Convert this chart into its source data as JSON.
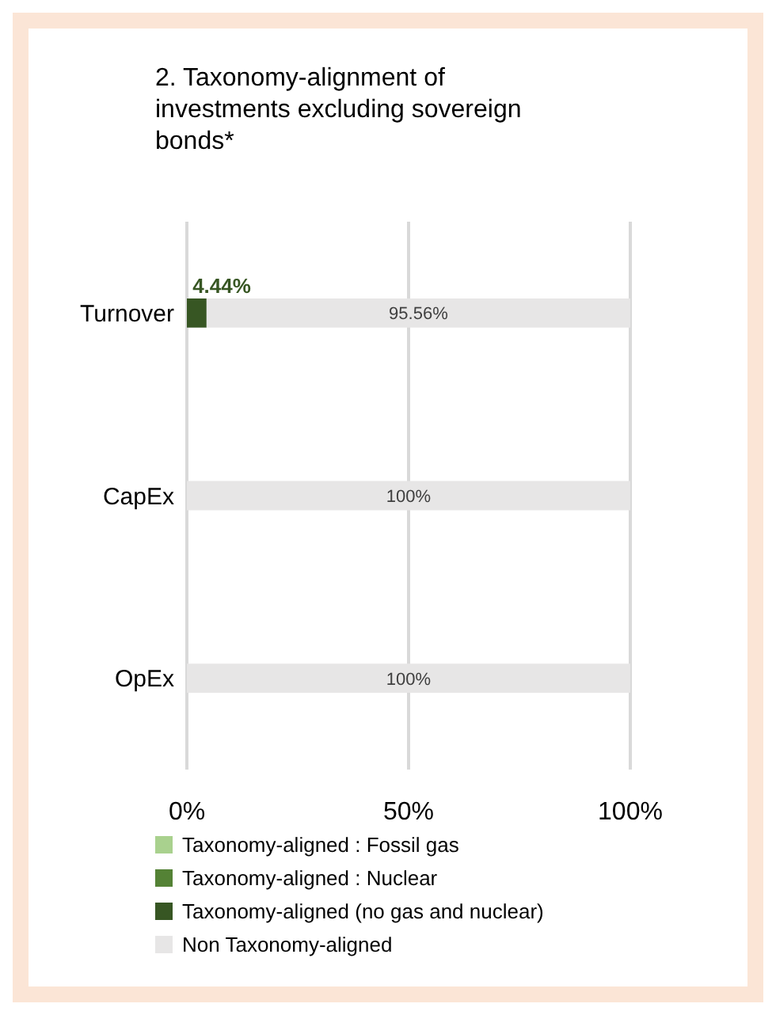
{
  "chart_data": {
    "type": "bar",
    "orientation": "horizontal",
    "stacked": true,
    "title": "2. Taxonomy-alignment of investments excluding sovereign bonds*",
    "categories": [
      "Turnover",
      "CapEx",
      "OpEx"
    ],
    "series": [
      {
        "name": "Taxonomy-aligned : Fossil gas",
        "color": "#a9d18e",
        "values": [
          0,
          0,
          0
        ]
      },
      {
        "name": "Taxonomy-aligned : Nuclear",
        "color": "#548235",
        "values": [
          0,
          0,
          0
        ]
      },
      {
        "name": "Taxonomy-aligned (no gas and nuclear)",
        "color": "#375623",
        "values": [
          4.44,
          0,
          0
        ],
        "value_labels": [
          "4.44%",
          null,
          null
        ]
      },
      {
        "name": "Non Taxonomy-aligned",
        "color": "#e7e6e6",
        "values": [
          95.56,
          100,
          100
        ],
        "value_labels": [
          "95.56%",
          "100%",
          "100%"
        ]
      }
    ],
    "xlim": [
      0,
      100
    ],
    "xticks": [
      {
        "value": 0,
        "label": "0%"
      },
      {
        "value": 50,
        "label": "50%"
      },
      {
        "value": 100,
        "label": "100%"
      }
    ],
    "grid": "x",
    "legend": "bottom"
  }
}
